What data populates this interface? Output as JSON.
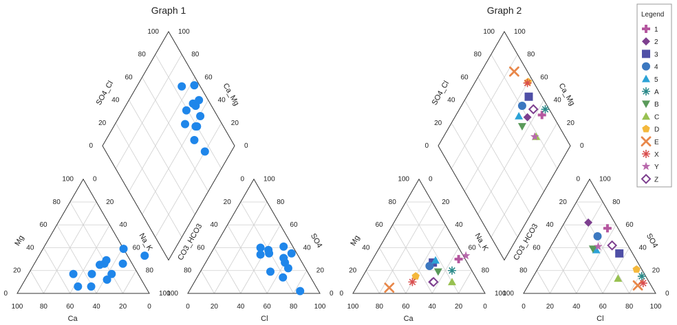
{
  "chart_data": [
    {
      "type": "scatter",
      "diagram": "piper",
      "title": "Graph 1",
      "cation_axes": [
        "Ca",
        "Mg",
        "Na_K"
      ],
      "anion_axes": [
        "Cl",
        "CO3_HCO3",
        "SO4"
      ],
      "diamond_axes": [
        "SO4_Cl",
        "Ca_Mg"
      ],
      "tick_labels": [
        "0",
        "20",
        "40",
        "60",
        "80",
        "100"
      ],
      "colors": {
        "marker": "#1f86ea",
        "grid": "#cfcfcf",
        "frame": "#333333"
      },
      "samples": [
        {
          "cation": [
            20,
            33,
            47
          ],
          "anion": [
            35,
            25,
            40
          ]
        },
        {
          "cation": [
            33,
            26,
            41
          ],
          "anion": [
            38,
            28,
            34
          ]
        },
        {
          "cation": [
            66,
            17,
            17
          ],
          "anion": [
            84,
            14,
            2
          ]
        },
        {
          "cation": [
            50,
            25,
            25
          ],
          "anion": [
            65,
            13,
            22
          ]
        },
        {
          "cation": [
            52,
            17,
            31
          ],
          "anion": [
            65,
            21,
            14
          ]
        },
        {
          "cation": [
            47,
            26,
            27
          ],
          "anion": [
            57,
            12,
            31
          ]
        },
        {
          "cation": [
            47,
            29,
            24
          ],
          "anion": [
            52,
            7,
            41
          ]
        },
        {
          "cation": [
            37,
            17,
            46
          ],
          "anion": [
            42,
            20,
            38
          ]
        },
        {
          "cation": [
            38,
            12,
            50
          ],
          "anion": [
            44,
            21,
            35
          ]
        },
        {
          "cation": [
            47,
            6,
            47
          ],
          "anion": [
            53,
            28,
            19
          ]
        },
        {
          "cation": [
            57,
            6,
            37
          ],
          "anion": [
            61,
            4,
            35
          ]
        },
        {
          "cation": [
            39,
            39,
            22
          ],
          "anion": [
            60,
            13,
            27
          ]
        }
      ]
    },
    {
      "type": "scatter",
      "diagram": "piper",
      "title": "Graph 2",
      "cation_axes": [
        "Ca",
        "Mg",
        "Na_K"
      ],
      "anion_axes": [
        "Cl",
        "CO3_HCO3",
        "SO4"
      ],
      "diamond_axes": [
        "SO4_Cl",
        "Ca_Mg"
      ],
      "tick_labels": [
        "0",
        "20",
        "40",
        "60",
        "80",
        "100"
      ],
      "legend_title": "Legend",
      "legend_position": "top-right",
      "colors": {
        "grid": "#cfcfcf",
        "frame": "#333333"
      },
      "series": [
        {
          "name": "1",
          "marker": "plus",
          "color": "#b5579f",
          "cation": [
            35,
            30,
            35
          ],
          "anion": [
            35,
            8,
            57
          ]
        },
        {
          "name": "2",
          "marker": "diamond",
          "color": "#7d3f8f",
          "cation": [
            45,
            10,
            45
          ],
          "anion": [
            18,
            20,
            62
          ]
        },
        {
          "name": "3",
          "marker": "square",
          "color": "#4f4fa6",
          "cation": [
            53,
            27,
            20
          ],
          "anion": [
            55,
            10,
            35
          ]
        },
        {
          "name": "4",
          "marker": "circle",
          "color": "#3c78c0",
          "cation": [
            54,
            24,
            22
          ],
          "anion": [
            31,
            19,
            50
          ]
        },
        {
          "name": "5",
          "marker": "triangle-up",
          "color": "#2ba2d6",
          "cation": [
            52,
            29,
            19
          ],
          "anion": [
            36,
            26,
            38
          ]
        },
        {
          "name": "A",
          "marker": "asterisk",
          "color": "#2c8a8a",
          "cation": [
            35,
            20,
            45
          ],
          "anion": [
            82,
            3,
            15
          ]
        },
        {
          "name": "B",
          "marker": "triangle-down",
          "color": "#5a9a5a",
          "cation": [
            45,
            19,
            36
          ],
          "anion": [
            33,
            28,
            39
          ]
        },
        {
          "name": "C",
          "marker": "triangle-up",
          "color": "#98c151",
          "cation": [
            30,
            10,
            60
          ],
          "anion": [
            65,
            22,
            13
          ]
        },
        {
          "name": "D",
          "marker": "pentagon",
          "color": "#f4b83c",
          "cation": [
            60,
            15,
            25
          ],
          "anion": [
            75,
            4,
            21
          ]
        },
        {
          "name": "E",
          "marker": "x",
          "color": "#e8874a",
          "cation": [
            75,
            5,
            20
          ],
          "anion": [
            83,
            10,
            7
          ]
        },
        {
          "name": "X",
          "marker": "asterisk",
          "color": "#d94f4f",
          "cation": [
            60,
            10,
            30
          ],
          "anion": [
            86,
            5,
            9
          ]
        },
        {
          "name": "Y",
          "marker": "star",
          "color": "#b869ac",
          "cation": [
            31,
            33,
            36
          ],
          "anion": [
            36,
            23,
            41
          ]
        },
        {
          "name": "Z",
          "marker": "open-diamond",
          "color": "#7d3f8f",
          "cation": [
            44,
            10,
            46
          ],
          "anion": [
            46,
            12,
            42
          ]
        }
      ]
    }
  ]
}
